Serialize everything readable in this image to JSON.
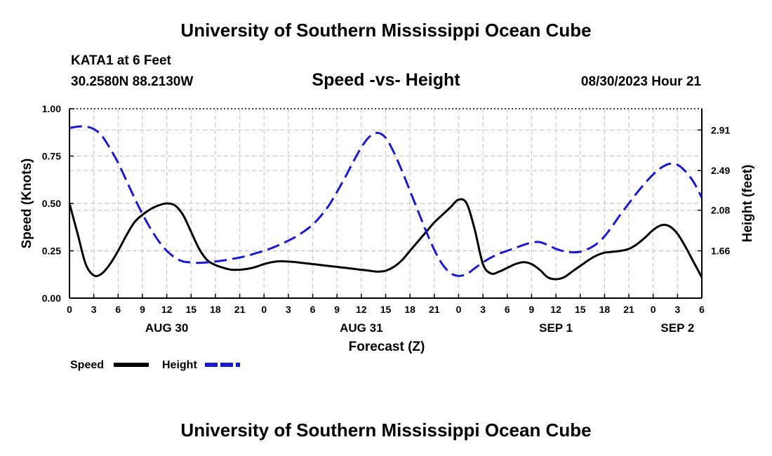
{
  "header": {
    "title": "University of Southern Mississippi Ocean Cube",
    "station": "KATA1 at 6 Feet",
    "coordinates": "30.2580N  88.2130W",
    "subtitle": "Speed -vs- Height",
    "run_time": "08/30/2023 Hour 21"
  },
  "footer": {
    "title": "University of Southern Mississippi Ocean Cube"
  },
  "colors": {
    "speed": "#000000",
    "height": "#1a1acc",
    "grid": "#c8c8c8"
  },
  "chart_data": {
    "type": "line",
    "title": "Speed -vs- Height",
    "xlabel": "Forecast (Z)",
    "ylabel": "Speed (Knots)",
    "y2label": "Height (feet)",
    "x_range": [
      0,
      78
    ],
    "x_ticks": [
      0,
      3,
      6,
      9,
      12,
      15,
      18,
      21,
      24,
      27,
      30,
      33,
      36,
      39,
      42,
      45,
      48,
      51,
      54,
      57,
      60,
      63,
      66,
      69,
      72,
      75,
      78
    ],
    "x_tick_labels": [
      "0",
      "3",
      "6",
      "9",
      "12",
      "15",
      "18",
      "21",
      "0",
      "3",
      "6",
      "9",
      "12",
      "15",
      "18",
      "21",
      "0",
      "3",
      "6",
      "9",
      "12",
      "15",
      "18",
      "21",
      "0",
      "3",
      "6"
    ],
    "date_labels": [
      {
        "label": "AUG 30",
        "x": 12
      },
      {
        "label": "AUG 31",
        "x": 36
      },
      {
        "label": "SEP 1",
        "x": 60
      },
      {
        "label": "SEP 2",
        "x": 75
      }
    ],
    "y_range": [
      0,
      1
    ],
    "y_ticks": [
      0,
      0.25,
      0.5,
      0.75,
      1.0
    ],
    "y_tick_labels": [
      "0.00",
      "0.25",
      "0.50",
      "0.75",
      "1.00"
    ],
    "y2_range": [
      1.17,
      3.13
    ],
    "y2_ticks": [
      1.66,
      2.08,
      2.49,
      2.91
    ],
    "y2_tick_labels": [
      "1.66",
      "2.08",
      "2.49",
      "2.91"
    ],
    "grid": true,
    "series": [
      {
        "name": "Speed",
        "axis": "left",
        "style": "solid",
        "x": [
          0,
          1,
          2,
          3,
          4,
          5,
          6,
          7,
          8,
          9,
          10,
          11,
          12,
          13,
          14,
          15,
          16,
          17,
          18,
          19,
          20,
          21,
          22,
          23,
          24,
          25,
          26,
          27,
          28,
          29,
          30,
          31,
          32,
          33,
          34,
          35,
          36,
          37,
          38,
          39,
          40,
          41,
          42,
          43,
          44,
          45,
          46,
          47,
          48,
          49,
          50,
          51,
          52,
          53,
          54,
          55,
          56,
          57,
          58,
          59,
          60,
          61,
          62,
          63,
          64,
          65,
          66,
          67,
          68,
          69,
          70,
          71,
          72,
          73,
          74,
          75,
          76,
          77,
          78
        ],
        "values": [
          0.5,
          0.34,
          0.18,
          0.12,
          0.13,
          0.18,
          0.25,
          0.33,
          0.4,
          0.44,
          0.47,
          0.49,
          0.5,
          0.49,
          0.44,
          0.35,
          0.26,
          0.2,
          0.175,
          0.16,
          0.15,
          0.15,
          0.155,
          0.165,
          0.18,
          0.19,
          0.195,
          0.193,
          0.19,
          0.185,
          0.18,
          0.175,
          0.17,
          0.165,
          0.16,
          0.155,
          0.15,
          0.145,
          0.14,
          0.145,
          0.165,
          0.2,
          0.25,
          0.3,
          0.35,
          0.4,
          0.44,
          0.48,
          0.52,
          0.5,
          0.36,
          0.18,
          0.13,
          0.14,
          0.16,
          0.18,
          0.19,
          0.18,
          0.15,
          0.11,
          0.1,
          0.11,
          0.14,
          0.17,
          0.2,
          0.225,
          0.24,
          0.245,
          0.25,
          0.26,
          0.285,
          0.32,
          0.36,
          0.385,
          0.38,
          0.34,
          0.27,
          0.19,
          0.11
        ]
      },
      {
        "name": "Height",
        "axis": "right",
        "style": "dashed",
        "x": [
          0,
          1,
          2,
          3,
          4,
          5,
          6,
          7,
          8,
          9,
          10,
          11,
          12,
          13,
          14,
          15,
          16,
          17,
          18,
          19,
          20,
          21,
          22,
          23,
          24,
          25,
          26,
          27,
          28,
          29,
          30,
          31,
          32,
          33,
          34,
          35,
          36,
          37,
          38,
          39,
          40,
          41,
          42,
          43,
          44,
          45,
          46,
          47,
          48,
          49,
          50,
          51,
          52,
          53,
          54,
          55,
          56,
          57,
          58,
          59,
          60,
          61,
          62,
          63,
          64,
          65,
          66,
          67,
          68,
          69,
          70,
          71,
          72,
          73,
          74,
          75,
          76,
          77,
          78
        ],
        "values": [
          2.93,
          2.945,
          2.945,
          2.92,
          2.85,
          2.72,
          2.57,
          2.39,
          2.21,
          2.04,
          1.89,
          1.76,
          1.66,
          1.59,
          1.55,
          1.54,
          1.535,
          1.54,
          1.55,
          1.56,
          1.575,
          1.59,
          1.61,
          1.635,
          1.66,
          1.69,
          1.725,
          1.765,
          1.81,
          1.865,
          1.93,
          2.02,
          2.13,
          2.27,
          2.42,
          2.58,
          2.73,
          2.84,
          2.88,
          2.83,
          2.68,
          2.49,
          2.28,
          2.07,
          1.86,
          1.67,
          1.52,
          1.43,
          1.4,
          1.42,
          1.48,
          1.54,
          1.59,
          1.63,
          1.66,
          1.69,
          1.72,
          1.745,
          1.75,
          1.72,
          1.68,
          1.655,
          1.645,
          1.65,
          1.68,
          1.73,
          1.81,
          1.92,
          2.04,
          2.15,
          2.26,
          2.36,
          2.45,
          2.52,
          2.56,
          2.55,
          2.48,
          2.37,
          2.21
        ]
      }
    ],
    "legend": {
      "placement": "bottom-left",
      "entries": [
        "Speed",
        "Height"
      ]
    }
  }
}
